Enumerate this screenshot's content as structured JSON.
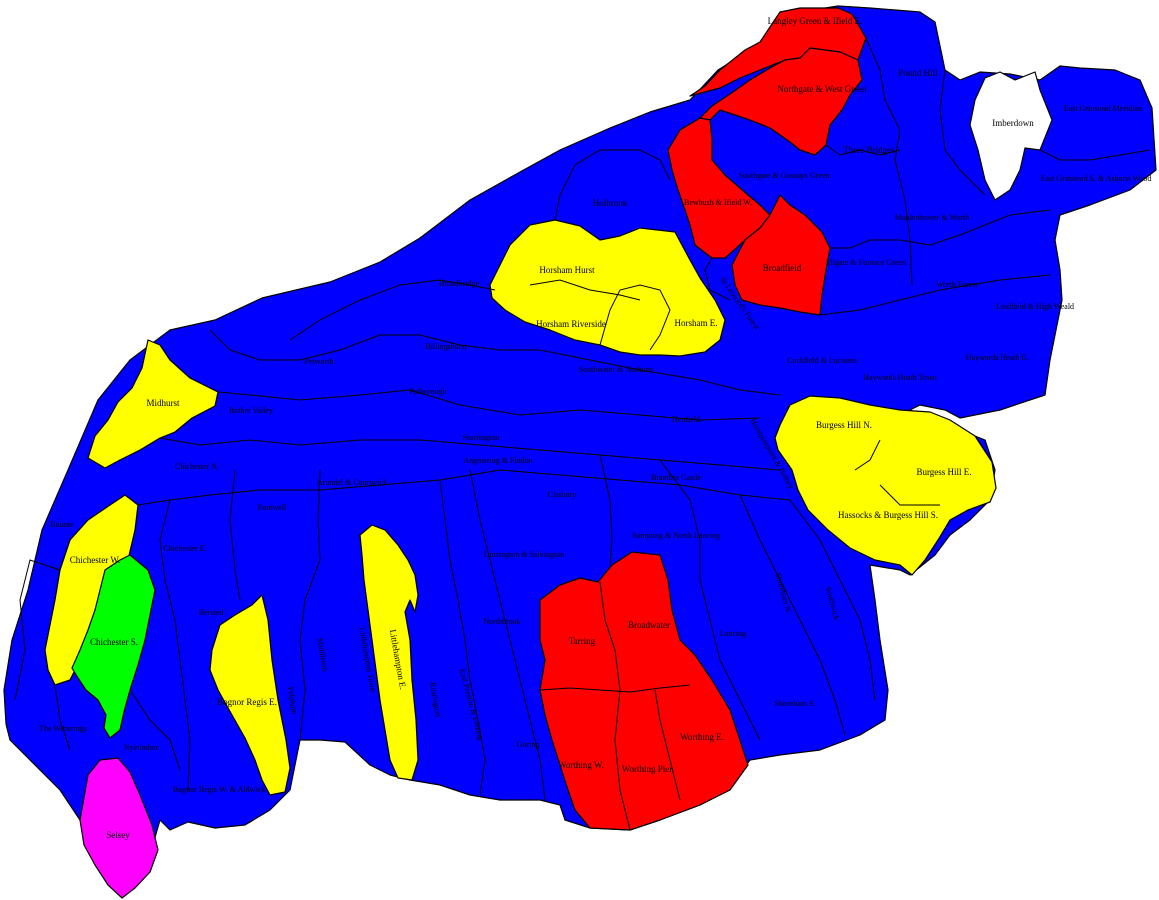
{
  "colors": {
    "conservative": "#0000ff",
    "labour": "#ff0000",
    "libdem": "#ffff00",
    "green": "#00ff00",
    "independent": "#ff00ff",
    "no_election": "#ffffff"
  },
  "divisions": {
    "langley_green": "Langley Green & Ifield E.",
    "northgate": "Northgate & West Green",
    "pound_hill": "Pound Hill",
    "imberdown": "Imberdown",
    "east_grinstead_meridian": "East Grinstead Meridian",
    "three_bridges": "Three Bridges",
    "east_grinstead_s": "East Grinstead S. & Ashurst Wood",
    "southgate": "Southgate & Gossops Green",
    "holbrook": "Holbrook",
    "bewbush": "Bewbush & Ifield W.",
    "maidenbower": "Maidenbower & Worth",
    "broadfield": "Broadfield",
    "tilgate": "Tilgate & Furnace Green",
    "horsham_hurst": "Horsham Hurst",
    "worth_forest": "Worth Forest",
    "lindfield": "Lindfield & High Weald",
    "broadbridge": "Broadbridge",
    "st_leonards": "St Leonard's Forest",
    "horsham_riverside": "Horsham Riverside",
    "horsham_e": "Horsham E.",
    "cuckfield": "Cuckfield & Lucastes",
    "haywards_heath_e": "Haywards Heath E.",
    "billingshurst": "Billingshurst",
    "petworth": "Petworth",
    "haywards_heath_town": "Haywards Heath Town",
    "southwater": "Southwater & Nuthurst",
    "midhurst": "Midhurst",
    "pulborough": "Pulborough",
    "rother_valley": "Rother Valley",
    "henfield": "Henfield",
    "burgess_hill_n": "Burgess Hill N.",
    "hurstpierpoint": "Hurstpierpoint & Bolney",
    "storrington": "Storrington",
    "chichester_n": "Chichester N.",
    "bramber_castle": "Bramber Castle",
    "burgess_hill_e": "Burgess Hill E.",
    "arundel": "Arundel & Courtwick",
    "angmering": "Angmering & Findon",
    "cissbury": "Cissbury",
    "hassocks": "Hassocks & Burgess Hill S.",
    "bourne": "Bourne",
    "fontwell": "Fontwell",
    "chichester_w": "Chichester W.",
    "chichester_e": "Chichester E.",
    "sompting": "Sompting & North Lancing",
    "durrington": "Durrington & Salvington",
    "shoreham_n": "Shoreham N.",
    "southwick": "Southwick",
    "chichester_s": "Chichester S.",
    "tarring": "Tarring",
    "broadwater": "Broadwater",
    "lancing": "Lancing",
    "selsey_ward": "Bersted",
    "middleton": "Middleton",
    "littlehampton_town": "Littlehampton Town",
    "littlehampton_e": "Littlehampton E.",
    "northbrook": "Northbrook",
    "felpham": "Felpham",
    "bognor_e": "Bognor Regis E.",
    "rustington": "Rustington",
    "east_preston": "East Preston & Ferring",
    "shoreham_s": "Shoreham S.",
    "witterings": "The Witterings",
    "nyetimber": "Nyetimber",
    "goring": "Goring",
    "worthing_e": "Worthing E.",
    "worthing_w": "Worthing W.",
    "worthing_pier": "Worthing Pier",
    "bognor_w": "Bognor Regis W. & Aldwick",
    "selsey": "Selsey"
  }
}
